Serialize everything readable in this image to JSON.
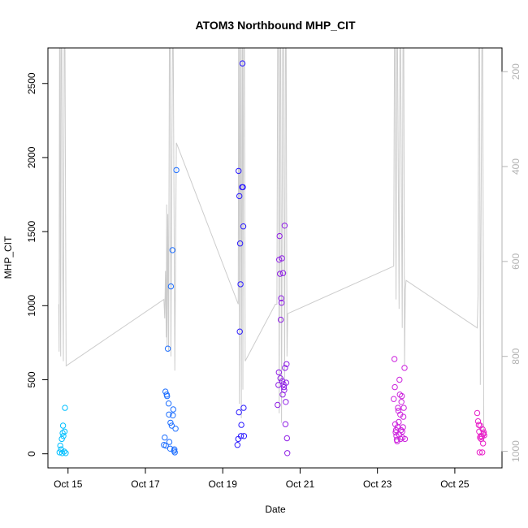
{
  "chart_data": {
    "type": "scatter",
    "title": "ATOM3 Northbound MHP_CIT",
    "xlabel": "Date",
    "ylabel": "MHP_CIT",
    "x_ticks": [
      {
        "value": 15,
        "label": "Oct 15"
      },
      {
        "value": 17,
        "label": "Oct 17"
      },
      {
        "value": 19,
        "label": "Oct 19"
      },
      {
        "value": 21,
        "label": "Oct 21"
      },
      {
        "value": 23,
        "label": "Oct 23"
      },
      {
        "value": 25,
        "label": "Oct 25"
      }
    ],
    "y_ticks": [
      0,
      500,
      1000,
      1500,
      2000,
      2500
    ],
    "y2_ticks": [
      200,
      400,
      600,
      800,
      1000
    ],
    "xlim": [
      14.48,
      26.22
    ],
    "ylim": [
      -95,
      2740
    ],
    "y2lim": [
      1035,
      150
    ],
    "grid": false,
    "series": [
      {
        "kind": "points",
        "points": [
          [
            14.78,
            10,
            "#00bfff"
          ],
          [
            14.8,
            55,
            "#00bfff"
          ],
          [
            14.82,
            30,
            "#00bfff"
          ],
          [
            14.84,
            100,
            "#00bfff"
          ],
          [
            14.85,
            5,
            "#00bfff"
          ],
          [
            14.86,
            140,
            "#00bfff"
          ],
          [
            14.87,
            190,
            "#00bfff"
          ],
          [
            14.88,
            120,
            "#00bfff"
          ],
          [
            14.9,
            15,
            "#00bfff"
          ],
          [
            14.91,
            150,
            "#00bfff"
          ],
          [
            14.92,
            310,
            "#00bfff"
          ],
          [
            14.94,
            5,
            "#00bfff"
          ],
          [
            17.48,
            60,
            "#1e6fff"
          ],
          [
            17.5,
            110,
            "#1e6fff"
          ],
          [
            17.52,
            420,
            "#1e6fff"
          ],
          [
            17.53,
            55,
            "#1e6fff"
          ],
          [
            17.55,
            400,
            "#1e6fff"
          ],
          [
            17.56,
            390,
            "#1e6fff"
          ],
          [
            17.58,
            710,
            "#1e6fff"
          ],
          [
            17.6,
            340,
            "#1e6fff"
          ],
          [
            17.61,
            265,
            "#1e6fff"
          ],
          [
            17.62,
            80,
            "#1e6fff"
          ],
          [
            17.64,
            35,
            "#1e6fff"
          ],
          [
            17.65,
            210,
            "#1e6fff"
          ],
          [
            17.66,
            1130,
            "#1e6fff"
          ],
          [
            17.68,
            190,
            "#1e6fff"
          ],
          [
            17.7,
            1375,
            "#1e6fff"
          ],
          [
            17.71,
            260,
            "#1e6fff"
          ],
          [
            17.72,
            300,
            "#1e6fff"
          ],
          [
            17.74,
            20,
            "#1e6fff"
          ],
          [
            17.75,
            30,
            "#1e6fff"
          ],
          [
            17.76,
            10,
            "#1e6fff"
          ],
          [
            17.78,
            170,
            "#1e6fff"
          ],
          [
            17.8,
            1915,
            "#1e6fff"
          ],
          [
            19.38,
            60,
            "#2b1bff"
          ],
          [
            19.4,
            100,
            "#2b1bff"
          ],
          [
            19.41,
            1910,
            "#2b1bff"
          ],
          [
            19.42,
            280,
            "#2b1bff"
          ],
          [
            19.43,
            1740,
            "#2b1bff"
          ],
          [
            19.44,
            825,
            "#2b1bff"
          ],
          [
            19.45,
            1420,
            "#2b1bff"
          ],
          [
            19.46,
            1145,
            "#2b1bff"
          ],
          [
            19.47,
            120,
            "#2b1bff"
          ],
          [
            19.48,
            195,
            "#2b1bff"
          ],
          [
            19.5,
            1800,
            "#2b1bff"
          ],
          [
            19.51,
            2635,
            "#2b1bff"
          ],
          [
            19.52,
            1800,
            "#2b1bff"
          ],
          [
            19.53,
            1535,
            "#2b1bff"
          ],
          [
            19.54,
            310,
            "#2b1bff"
          ],
          [
            19.55,
            120,
            "#2b1bff"
          ],
          [
            20.42,
            330,
            "#8f1ee6"
          ],
          [
            20.44,
            465,
            "#8f1ee6"
          ],
          [
            20.45,
            550,
            "#8f1ee6"
          ],
          [
            20.46,
            1310,
            "#8f1ee6"
          ],
          [
            20.47,
            1470,
            "#8f1ee6"
          ],
          [
            20.48,
            1215,
            "#8f1ee6"
          ],
          [
            20.49,
            510,
            "#8f1ee6"
          ],
          [
            20.5,
            905,
            "#8f1ee6"
          ],
          [
            20.51,
            1050,
            "#8f1ee6"
          ],
          [
            20.52,
            1020,
            "#8f1ee6"
          ],
          [
            20.53,
            1320,
            "#8f1ee6"
          ],
          [
            20.54,
            490,
            "#8f1ee6"
          ],
          [
            20.55,
            400,
            "#8f1ee6"
          ],
          [
            20.56,
            1220,
            "#8f1ee6"
          ],
          [
            20.57,
            470,
            "#8f1ee6"
          ],
          [
            20.58,
            450,
            "#8f1ee6"
          ],
          [
            20.59,
            430,
            "#8f1ee6"
          ],
          [
            20.6,
            1540,
            "#8f1ee6"
          ],
          [
            20.61,
            580,
            "#8f1ee6"
          ],
          [
            20.62,
            200,
            "#8f1ee6"
          ],
          [
            20.63,
            350,
            "#8f1ee6"
          ],
          [
            20.64,
            480,
            "#8f1ee6"
          ],
          [
            20.65,
            605,
            "#8f1ee6"
          ],
          [
            20.66,
            105,
            "#8f1ee6"
          ],
          [
            20.67,
            5,
            "#8f1ee6"
          ],
          [
            23.42,
            370,
            "#cc22dd"
          ],
          [
            23.44,
            640,
            "#cc22dd"
          ],
          [
            23.45,
            450,
            "#cc22dd"
          ],
          [
            23.46,
            200,
            "#cc22dd"
          ],
          [
            23.47,
            145,
            "#cc22dd"
          ],
          [
            23.48,
            160,
            "#cc22dd"
          ],
          [
            23.49,
            120,
            "#cc22dd"
          ],
          [
            23.5,
            95,
            "#cc22dd"
          ],
          [
            23.51,
            85,
            "#cc22dd"
          ],
          [
            23.52,
            180,
            "#cc22dd"
          ],
          [
            23.53,
            310,
            "#cc22dd"
          ],
          [
            23.54,
            290,
            "#cc22dd"
          ],
          [
            23.55,
            215,
            "#cc22dd"
          ],
          [
            23.56,
            130,
            "#cc22dd"
          ],
          [
            23.57,
            500,
            "#cc22dd"
          ],
          [
            23.58,
            400,
            "#cc22dd"
          ],
          [
            23.59,
            265,
            "#cc22dd"
          ],
          [
            23.6,
            100,
            "#cc22dd"
          ],
          [
            23.61,
            160,
            "#cc22dd"
          ],
          [
            23.62,
            350,
            "#cc22dd"
          ],
          [
            23.63,
            390,
            "#cc22dd"
          ],
          [
            23.64,
            150,
            "#cc22dd"
          ],
          [
            23.65,
            110,
            "#cc22dd"
          ],
          [
            23.66,
            180,
            "#cc22dd"
          ],
          [
            23.67,
            250,
            "#cc22dd"
          ],
          [
            23.68,
            310,
            "#cc22dd"
          ],
          [
            23.7,
            580,
            "#cc22dd"
          ],
          [
            23.71,
            100,
            "#cc22dd"
          ],
          [
            25.58,
            275,
            "#e81fc8"
          ],
          [
            25.6,
            220,
            "#e81fc8"
          ],
          [
            25.62,
            195,
            "#e81fc8"
          ],
          [
            25.63,
            150,
            "#e81fc8"
          ],
          [
            25.64,
            10,
            "#e81fc8"
          ],
          [
            25.65,
            110,
            "#e81fc8"
          ],
          [
            25.66,
            190,
            "#e81fc8"
          ],
          [
            25.67,
            120,
            "#e81fc8"
          ],
          [
            25.68,
            100,
            "#e81fc8"
          ],
          [
            25.7,
            115,
            "#e81fc8"
          ],
          [
            25.71,
            10,
            "#e81fc8"
          ],
          [
            25.72,
            165,
            "#e81fc8"
          ],
          [
            25.73,
            70,
            "#e81fc8"
          ],
          [
            25.74,
            135,
            "#e81fc8"
          ],
          [
            25.75,
            145,
            "#e81fc8"
          ],
          [
            25.76,
            125,
            "#e81fc8"
          ]
        ]
      },
      {
        "kind": "line",
        "axis": "right",
        "color": "#cccccc",
        "points": [
          [
            14.76,
            690
          ],
          [
            14.77,
            790
          ],
          [
            14.78,
            150
          ],
          [
            14.79,
            150
          ],
          [
            14.8,
            600
          ],
          [
            14.81,
            800
          ],
          [
            14.82,
            150
          ],
          [
            14.84,
            150
          ],
          [
            14.86,
            560
          ],
          [
            14.88,
            810
          ],
          [
            14.9,
            150
          ],
          [
            14.92,
            150
          ],
          [
            14.95,
            820
          ],
          [
            17.48,
            680
          ],
          [
            17.5,
            720
          ],
          [
            17.52,
            620
          ],
          [
            17.54,
            760
          ],
          [
            17.55,
            480
          ],
          [
            17.56,
            780
          ],
          [
            17.58,
            500
          ],
          [
            17.6,
            790
          ],
          [
            17.62,
            150
          ],
          [
            17.64,
            150
          ],
          [
            17.66,
            800
          ],
          [
            17.7,
            150
          ],
          [
            17.72,
            150
          ],
          [
            17.76,
            830
          ],
          [
            17.8,
            350
          ],
          [
            19.4,
            690
          ],
          [
            19.41,
            150
          ],
          [
            19.42,
            150
          ],
          [
            19.43,
            900
          ],
          [
            19.45,
            150
          ],
          [
            19.46,
            150
          ],
          [
            19.48,
            930
          ],
          [
            19.5,
            150
          ],
          [
            19.51,
            150
          ],
          [
            19.52,
            870
          ],
          [
            19.54,
            150
          ],
          [
            19.56,
            150
          ],
          [
            19.58,
            810
          ],
          [
            20.36,
            690
          ],
          [
            20.4,
            690
          ],
          [
            20.42,
            150
          ],
          [
            20.44,
            150
          ],
          [
            20.46,
            920
          ],
          [
            20.48,
            150
          ],
          [
            20.5,
            150
          ],
          [
            20.52,
            940
          ],
          [
            20.55,
            150
          ],
          [
            20.57,
            150
          ],
          [
            20.6,
            860
          ],
          [
            20.62,
            150
          ],
          [
            20.64,
            150
          ],
          [
            20.66,
            800
          ],
          [
            20.68,
            710
          ],
          [
            23.42,
            610
          ],
          [
            23.44,
            150
          ],
          [
            23.46,
            150
          ],
          [
            23.48,
            680
          ],
          [
            23.5,
            150
          ],
          [
            23.52,
            150
          ],
          [
            23.56,
            700
          ],
          [
            23.58,
            150
          ],
          [
            23.6,
            150
          ],
          [
            23.64,
            740
          ],
          [
            23.66,
            150
          ],
          [
            23.68,
            150
          ],
          [
            23.7,
            820
          ],
          [
            23.72,
            660
          ],
          [
            23.74,
            640
          ],
          [
            25.58,
            740
          ],
          [
            25.6,
            670
          ],
          [
            25.62,
            150
          ],
          [
            25.64,
            150
          ],
          [
            25.66,
            860
          ],
          [
            25.7,
            150
          ],
          [
            25.72,
            150
          ],
          [
            25.75,
            980
          ]
        ]
      }
    ]
  }
}
